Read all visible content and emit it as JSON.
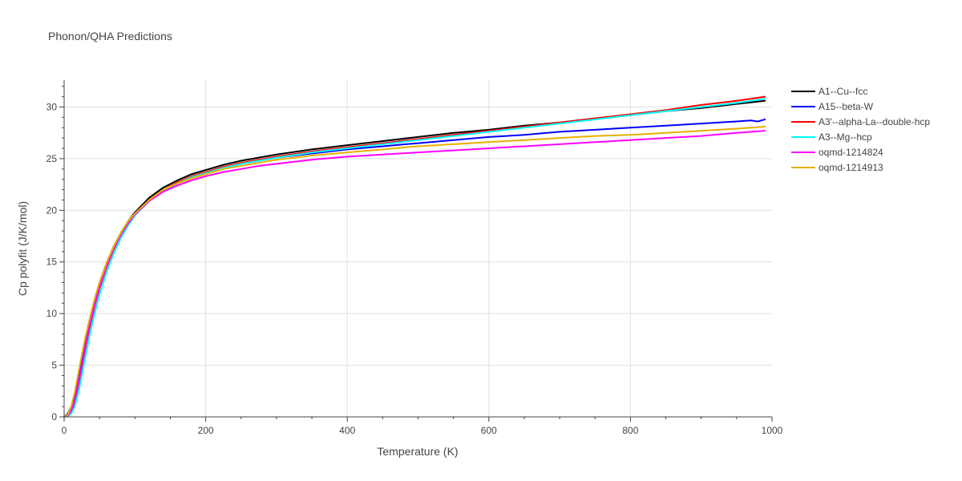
{
  "chart_data": {
    "type": "line",
    "title": "Phonon/QHA Predictions",
    "xlabel": "Temperature (K)",
    "ylabel": "Cp polyfit (J/K/mol)",
    "xlim": [
      0,
      1000
    ],
    "ylim": [
      0,
      32.6
    ],
    "xticks": [
      0,
      200,
      400,
      600,
      800,
      1000
    ],
    "yticks": [
      0,
      5,
      10,
      15,
      20,
      25,
      30
    ],
    "grid": true,
    "legend_position": "top-right",
    "series": [
      {
        "name": "A1--Cu--fcc",
        "color": "#000000",
        "x": [
          0,
          5,
          10,
          15,
          20,
          25,
          30,
          35,
          40,
          45,
          50,
          60,
          70,
          80,
          90,
          100,
          120,
          140,
          160,
          180,
          200,
          225,
          250,
          275,
          300,
          350,
          400,
          450,
          500,
          550,
          600,
          650,
          700,
          750,
          800,
          850,
          900,
          950,
          990
        ],
        "y": [
          0,
          0.2,
          0.8,
          2.0,
          3.8,
          5.6,
          7.3,
          8.9,
          10.4,
          11.7,
          12.9,
          14.9,
          16.5,
          17.8,
          18.9,
          19.8,
          21.2,
          22.2,
          22.9,
          23.5,
          23.9,
          24.4,
          24.8,
          25.1,
          25.4,
          25.9,
          26.3,
          26.7,
          27.1,
          27.5,
          27.8,
          28.2,
          28.5,
          28.9,
          29.2,
          29.6,
          29.9,
          30.3,
          30.6
        ]
      },
      {
        "name": "A15--beta-W",
        "color": "#0000ff",
        "x": [
          0,
          5,
          10,
          15,
          20,
          25,
          30,
          35,
          40,
          45,
          50,
          60,
          70,
          80,
          90,
          100,
          120,
          140,
          160,
          180,
          200,
          225,
          250,
          275,
          300,
          350,
          400,
          450,
          500,
          550,
          600,
          650,
          700,
          750,
          800,
          850,
          900,
          950,
          970,
          980,
          990
        ],
        "y": [
          0,
          0.3,
          1.0,
          2.2,
          4.0,
          5.8,
          7.5,
          9.1,
          10.5,
          11.8,
          13.0,
          14.9,
          16.4,
          17.6,
          18.7,
          19.6,
          20.9,
          21.9,
          22.6,
          23.2,
          23.6,
          24.1,
          24.5,
          24.8,
          25.1,
          25.5,
          25.9,
          26.2,
          26.5,
          26.8,
          27.1,
          27.3,
          27.6,
          27.8,
          28.0,
          28.2,
          28.4,
          28.6,
          28.7,
          28.6,
          28.8
        ]
      },
      {
        "name": "A3'--alpha-La--double-hcp",
        "color": "#ff0000",
        "x": [
          0,
          5,
          10,
          15,
          20,
          25,
          30,
          35,
          40,
          45,
          50,
          60,
          70,
          80,
          90,
          100,
          120,
          140,
          160,
          180,
          200,
          225,
          250,
          275,
          300,
          350,
          400,
          450,
          500,
          550,
          600,
          650,
          700,
          750,
          800,
          850,
          900,
          950,
          990
        ],
        "y": [
          0,
          0.1,
          0.5,
          1.4,
          3.0,
          4.8,
          6.6,
          8.3,
          9.8,
          11.2,
          12.4,
          14.5,
          16.2,
          17.6,
          18.7,
          19.6,
          21.0,
          22.0,
          22.7,
          23.3,
          23.7,
          24.2,
          24.6,
          24.9,
          25.2,
          25.7,
          26.1,
          26.5,
          26.9,
          27.3,
          27.7,
          28.1,
          28.5,
          28.9,
          29.3,
          29.7,
          30.2,
          30.6,
          31.0
        ]
      },
      {
        "name": "A3--Mg--hcp",
        "color": "#00ffff",
        "x": [
          0,
          5,
          10,
          15,
          20,
          25,
          30,
          35,
          40,
          45,
          50,
          60,
          70,
          80,
          90,
          100,
          120,
          140,
          160,
          180,
          200,
          225,
          250,
          275,
          300,
          350,
          400,
          450,
          500,
          550,
          600,
          650,
          700,
          750,
          800,
          850,
          900,
          950,
          990
        ],
        "y": [
          0,
          0.05,
          0.3,
          1.0,
          2.3,
          4.0,
          5.8,
          7.5,
          9.1,
          10.5,
          11.8,
          14.0,
          15.8,
          17.3,
          18.5,
          19.5,
          20.9,
          21.9,
          22.6,
          23.2,
          23.6,
          24.1,
          24.5,
          24.8,
          25.1,
          25.6,
          26.0,
          26.4,
          26.8,
          27.2,
          27.6,
          28.0,
          28.4,
          28.8,
          29.2,
          29.6,
          30.0,
          30.4,
          30.8
        ]
      },
      {
        "name": "oqmd-1214824",
        "color": "#ff00ff",
        "x": [
          0,
          5,
          10,
          15,
          20,
          25,
          30,
          35,
          40,
          45,
          50,
          60,
          70,
          80,
          90,
          100,
          120,
          140,
          160,
          180,
          200,
          225,
          250,
          275,
          300,
          350,
          400,
          450,
          500,
          550,
          600,
          650,
          700,
          750,
          800,
          850,
          900,
          950,
          990
        ],
        "y": [
          0,
          0.1,
          0.6,
          1.6,
          3.2,
          5.0,
          6.8,
          8.5,
          10.0,
          11.3,
          12.5,
          14.6,
          16.3,
          17.6,
          18.7,
          19.6,
          20.9,
          21.8,
          22.4,
          22.9,
          23.3,
          23.7,
          24.0,
          24.3,
          24.5,
          24.9,
          25.2,
          25.4,
          25.6,
          25.8,
          26.0,
          26.2,
          26.4,
          26.6,
          26.8,
          27.0,
          27.2,
          27.5,
          27.7
        ]
      },
      {
        "name": "oqmd-1214913",
        "color": "#e6b000",
        "x": [
          0,
          5,
          10,
          15,
          20,
          25,
          30,
          35,
          40,
          45,
          50,
          60,
          70,
          80,
          90,
          100,
          120,
          140,
          160,
          180,
          200,
          225,
          250,
          275,
          300,
          350,
          400,
          450,
          500,
          550,
          600,
          650,
          700,
          750,
          800,
          850,
          900,
          950,
          990
        ],
        "y": [
          0,
          0.2,
          1.0,
          2.4,
          4.2,
          6.0,
          7.7,
          9.2,
          10.6,
          11.9,
          13.0,
          14.9,
          16.5,
          17.8,
          18.9,
          19.7,
          21.0,
          22.0,
          22.6,
          23.1,
          23.5,
          24.0,
          24.3,
          24.6,
          24.9,
          25.3,
          25.6,
          25.9,
          26.2,
          26.4,
          26.6,
          26.8,
          27.0,
          27.2,
          27.3,
          27.5,
          27.7,
          27.9,
          28.1
        ]
      }
    ]
  }
}
